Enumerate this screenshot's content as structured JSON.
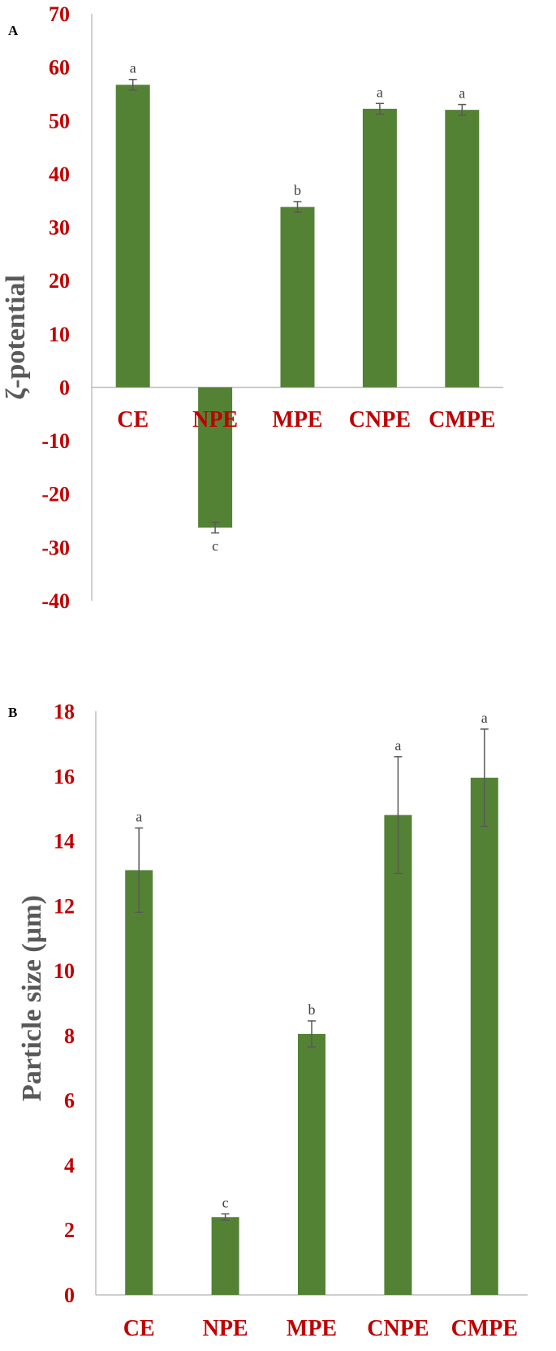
{
  "colors": {
    "bar": "#548235",
    "tick_label": "#c00000",
    "axis_title": "#595959",
    "axis_line": "#bfbfbf",
    "error_bar": "#595959",
    "significance_letter": "#404040"
  },
  "chart_data": [
    {
      "panel": "A",
      "type": "bar",
      "title": "",
      "xlabel": "",
      "ylabel": "ζ-potential",
      "ylim": [
        -40,
        70
      ],
      "ytick_step": 10,
      "ytick_labels": [
        "-40",
        "-30",
        "-20",
        "-10",
        "0",
        "10",
        "20",
        "30",
        "40",
        "50",
        "60",
        "70"
      ],
      "categories": [
        "CE",
        "NPE",
        "MPE",
        "CNPE",
        "CMPE"
      ],
      "values": [
        56.7,
        -26.3,
        33.8,
        52.2,
        52.0
      ],
      "errors": [
        1.0,
        1.0,
        1.0,
        1.0,
        1.0
      ],
      "significance": [
        "a",
        "c",
        "b",
        "a",
        "a"
      ],
      "grid": false,
      "legend": "none"
    },
    {
      "panel": "B",
      "type": "bar",
      "title": "",
      "xlabel": "",
      "ylabel": "Particle size (µm)",
      "ylim": [
        0,
        18
      ],
      "ytick_step": 2,
      "ytick_labels": [
        "0",
        "2",
        "4",
        "6",
        "8",
        "10",
        "12",
        "14",
        "16",
        "18"
      ],
      "categories": [
        "CE",
        "NPE",
        "MPE",
        "CNPE",
        "CMPE"
      ],
      "values": [
        13.1,
        2.4,
        8.05,
        14.8,
        15.95
      ],
      "errors": [
        1.3,
        0.1,
        0.4,
        1.8,
        1.5
      ],
      "significance": [
        "a",
        "c",
        "b",
        "a",
        "a"
      ],
      "grid": false,
      "legend": "none"
    }
  ]
}
